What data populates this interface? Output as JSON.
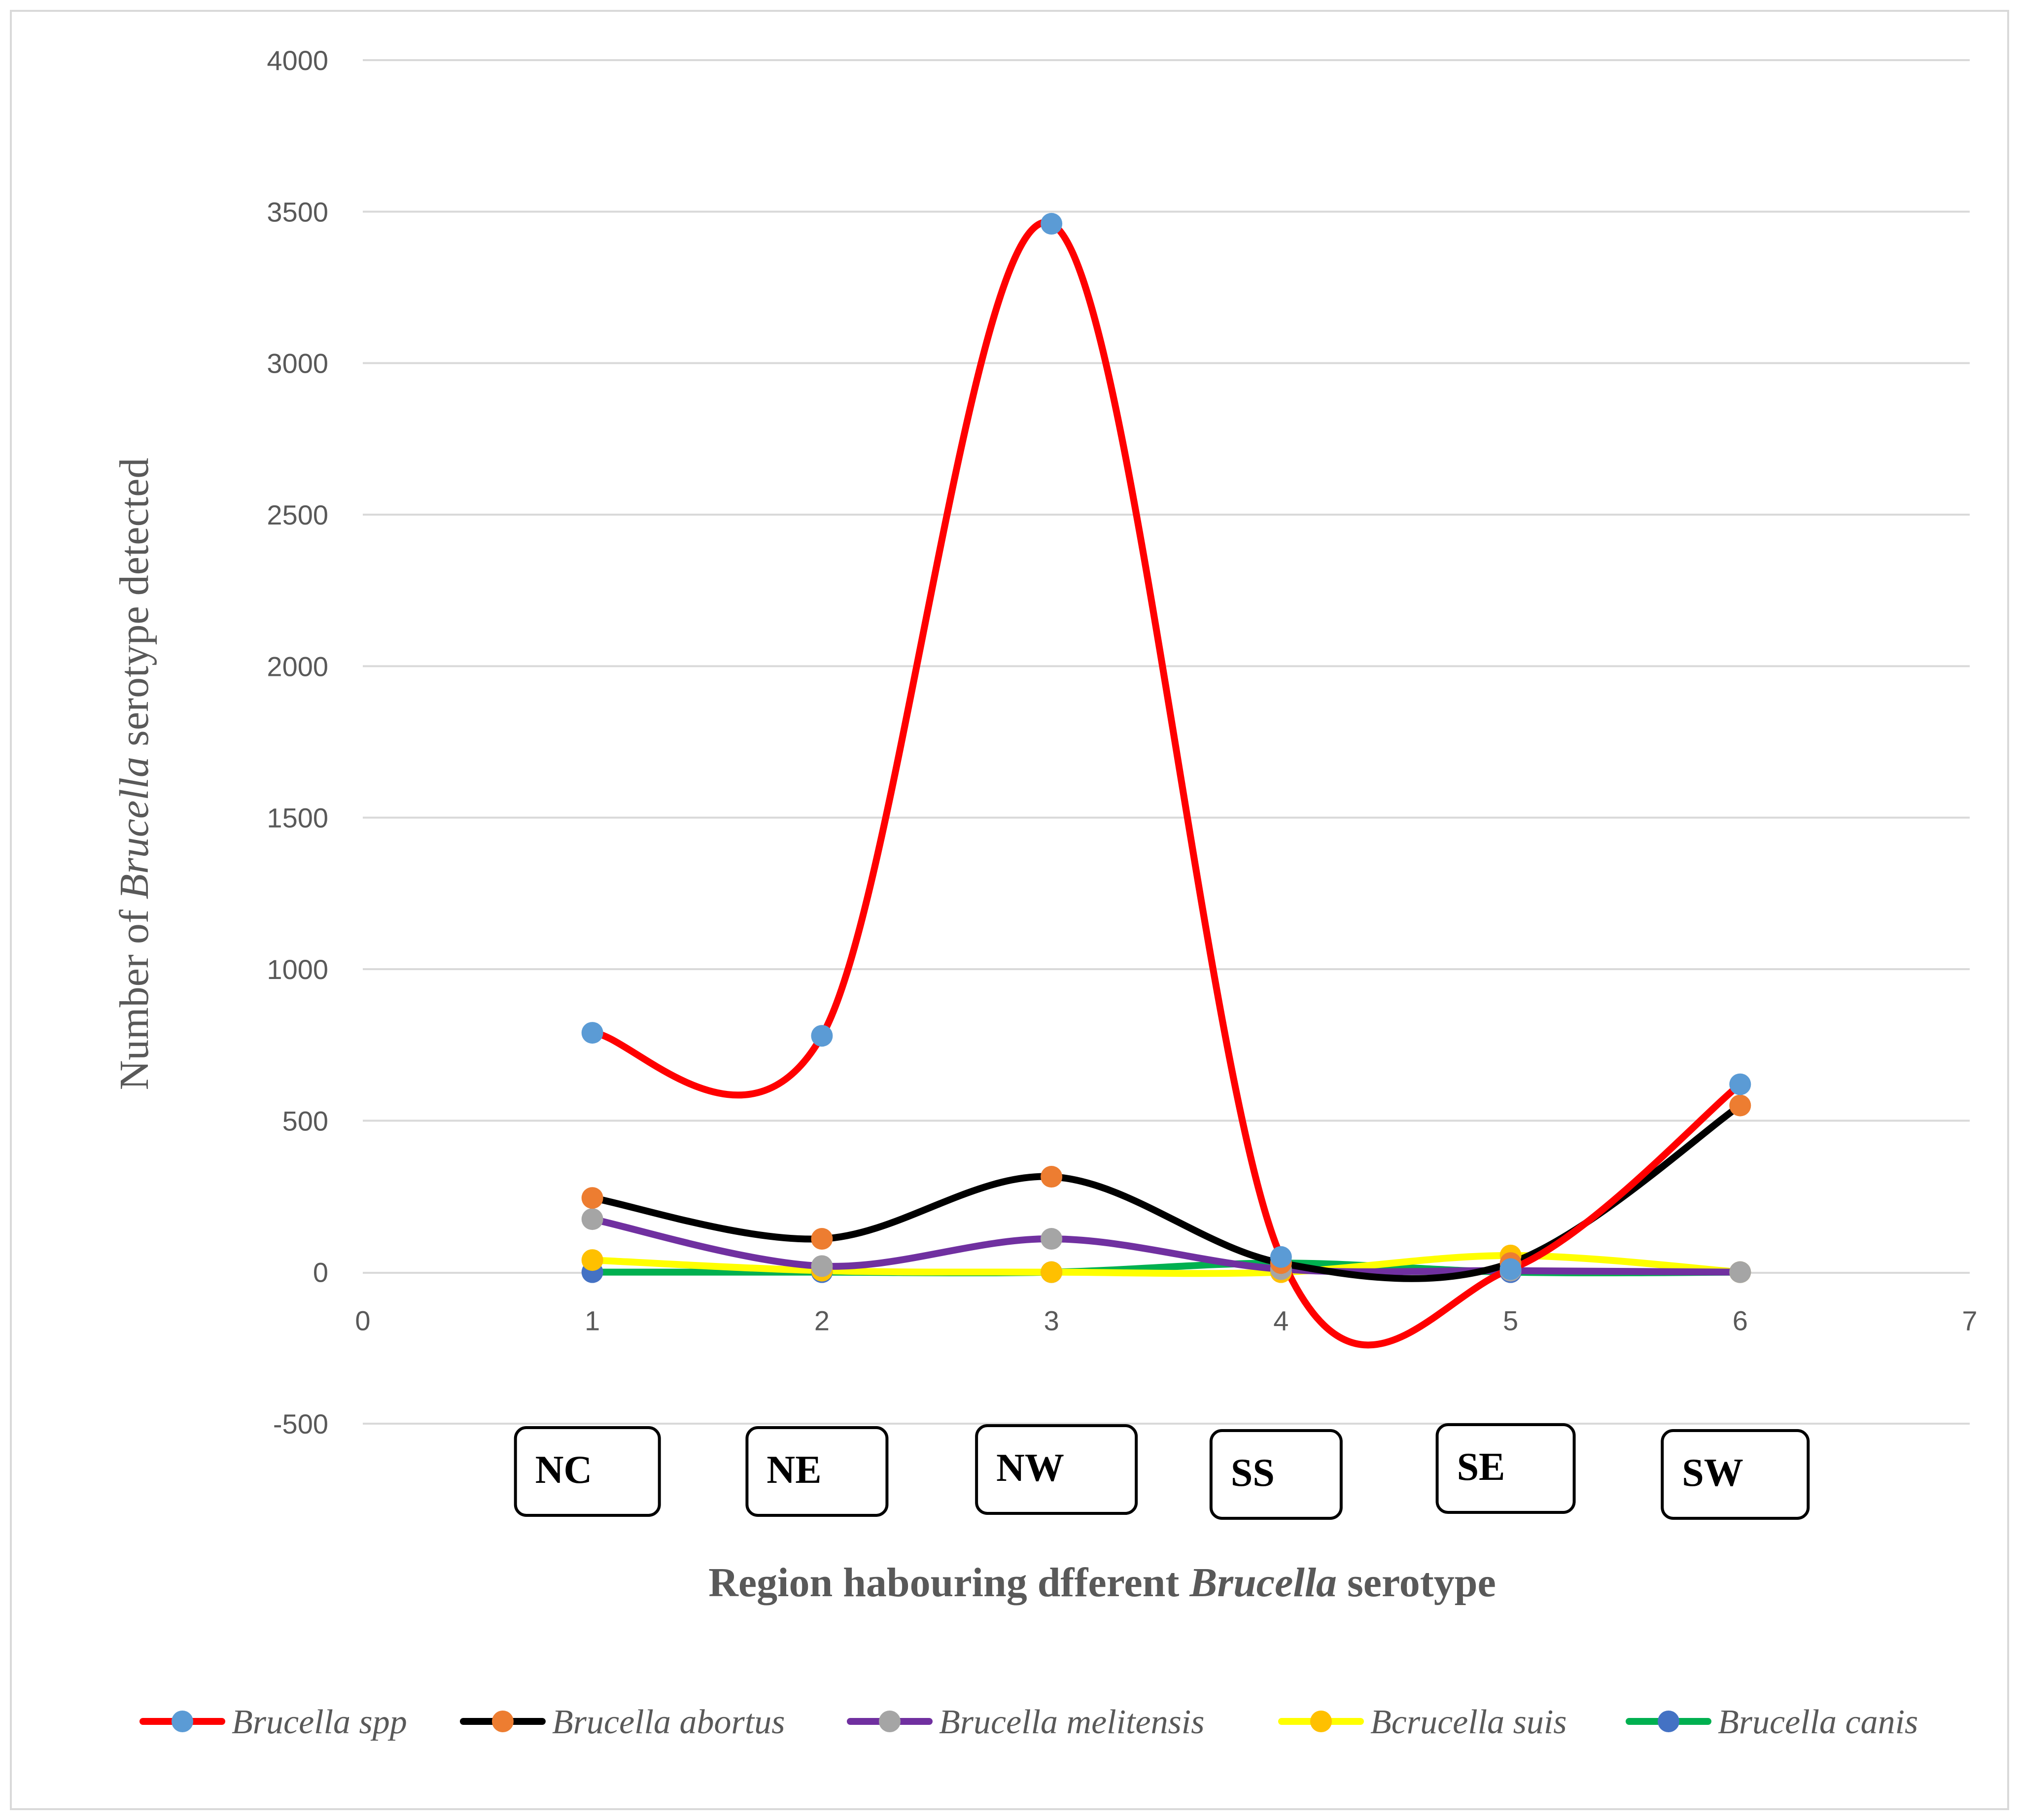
{
  "chart_data": {
    "type": "line",
    "smooth": true,
    "x_ticks": [
      "0",
      "1",
      "2",
      "3",
      "4",
      "5",
      "6",
      "7"
    ],
    "y_ticks": [
      "4000",
      "3500",
      "3000",
      "2500",
      "2000",
      "1500",
      "1000",
      "500",
      "0",
      "-500"
    ],
    "xlim": [
      0,
      7
    ],
    "ylim": [
      -500,
      4000
    ],
    "grid": "horizontal",
    "x": [
      1,
      2,
      3,
      4,
      5,
      6
    ],
    "region_labels": [
      "NC",
      "NE",
      "NW",
      "SS",
      "SE",
      "SW"
    ],
    "ylabel": {
      "prefix": "Number of ",
      "italic": "Brucella",
      "suffix": " serotype detected"
    },
    "xlabel": {
      "prefix": "Region habouring dfferent ",
      "italic": "Brucella",
      "suffix": " serotype"
    },
    "legend_position": "bottom",
    "series": [
      {
        "name": "Brucella spp",
        "line_color": "#ff0000",
        "marker_color": "#5b9bd5",
        "values": [
          790,
          780,
          3460,
          50,
          10,
          620
        ]
      },
      {
        "name": "Brucella abortus",
        "line_color": "#000000",
        "marker_color": "#ed7d31",
        "values": [
          245,
          110,
          315,
          30,
          30,
          550
        ]
      },
      {
        "name": "Brucella melitensis",
        "line_color": "#7030a0",
        "marker_color": "#a5a5a5",
        "values": [
          175,
          20,
          110,
          10,
          5,
          0
        ]
      },
      {
        "name": "Bcrucella suis",
        "line_color": "#ffff00",
        "marker_color": "#ffc000",
        "values": [
          40,
          5,
          0,
          0,
          55,
          0
        ]
      },
      {
        "name": "Brucella canis",
        "line_color": "#00b050",
        "marker_color": "#4472c4",
        "values": [
          0,
          0,
          0,
          30,
          0,
          0
        ]
      }
    ]
  }
}
